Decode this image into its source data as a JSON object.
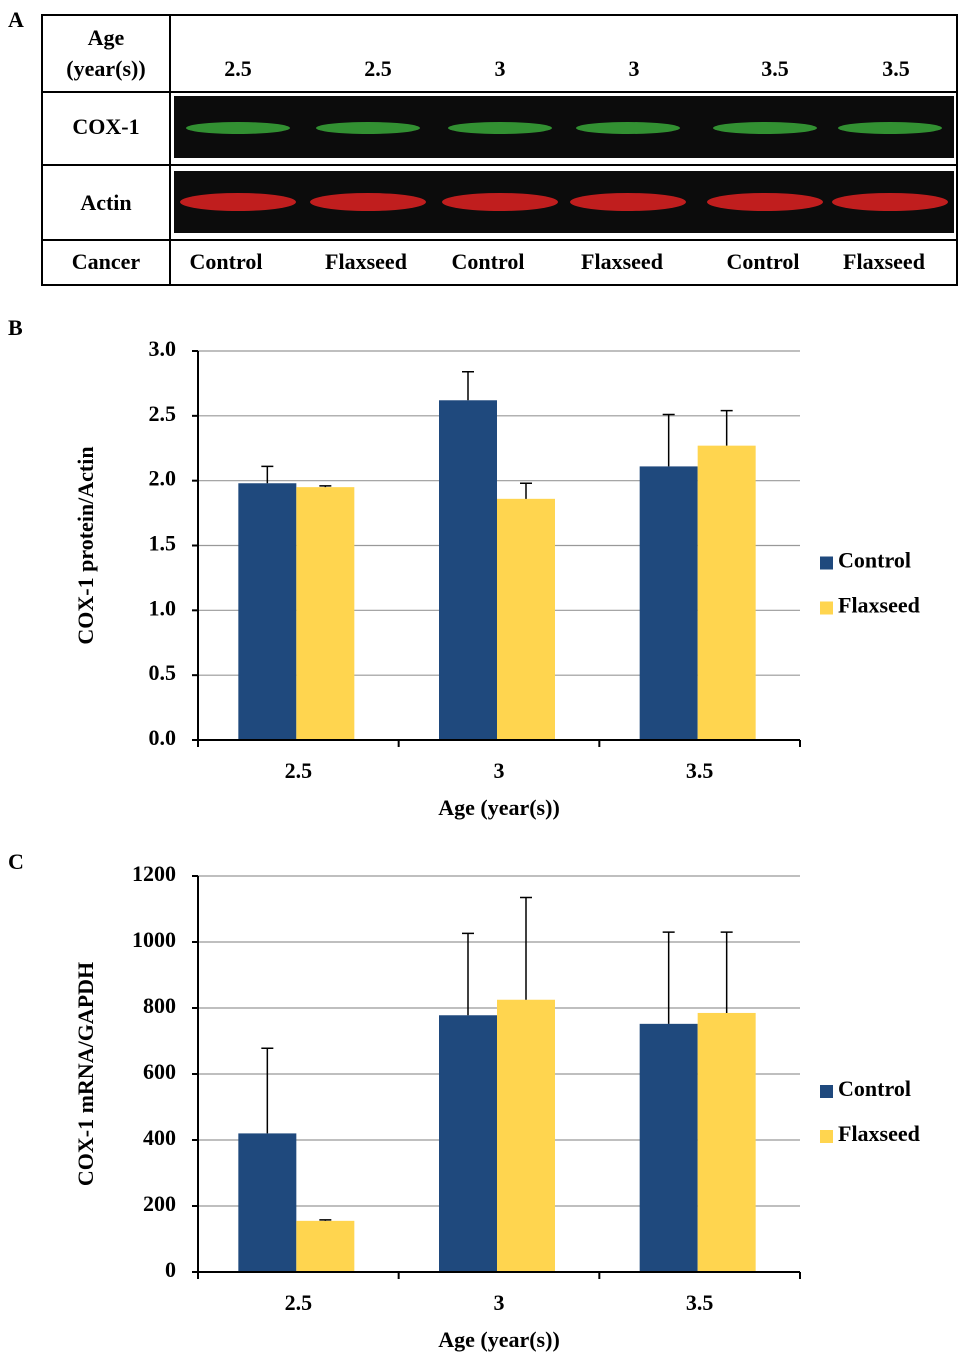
{
  "panel_labels": [
    "A",
    "B",
    "C"
  ],
  "blot": {
    "age_label": [
      "Age",
      "(year(s))"
    ],
    "ages": [
      "2.5",
      "2.5",
      "3",
      "3",
      "3.5",
      "3.5"
    ],
    "rows": [
      "COX-1",
      "Actin"
    ],
    "cancer_label": "Cancer",
    "groups": [
      "Control",
      "Flaxseed",
      "Control",
      "Flaxseed",
      "Control",
      "Flaxseed"
    ]
  },
  "chart_data": [
    {
      "type": "bar",
      "y_label": "COX-1 protein/Actin",
      "x_label": "Age (year(s))",
      "categories": [
        "2.5",
        "3",
        "3.5"
      ],
      "series": [
        {
          "name": "Control",
          "color": "#1f497d",
          "values": [
            1.98,
            2.62,
            2.11
          ],
          "errors": [
            0.13,
            0.22,
            0.4
          ]
        },
        {
          "name": "Flaxseed",
          "color": "#ffd54f",
          "values": [
            1.95,
            1.86,
            2.27
          ],
          "errors": [
            0.01,
            0.12,
            0.27
          ]
        }
      ],
      "ylim": [
        0,
        3
      ],
      "yticks": [
        {
          "value": 0,
          "label": "0.0"
        },
        0.5,
        {
          "value": 1,
          "label": "1.0"
        },
        1.5,
        {
          "value": 2,
          "label": "2.0"
        },
        2.5,
        {
          "value": 3,
          "label": "3.0"
        }
      ],
      "grid": true,
      "legend": "right"
    },
    {
      "type": "bar",
      "y_label": "COX-1 mRNA/GAPDH",
      "x_label": "Age (year(s))",
      "categories": [
        "2.5",
        "3",
        "3.5"
      ],
      "series": [
        {
          "name": "Control",
          "color": "#1f497d",
          "values": [
            420,
            778,
            752
          ],
          "errors": [
            258,
            248,
            278
          ]
        },
        {
          "name": "Flaxseed",
          "color": "#ffd54f",
          "values": [
            155,
            825,
            785
          ],
          "errors": [
            3,
            310,
            245
          ]
        }
      ],
      "ylim": [
        0,
        1200
      ],
      "yticks": [
        0,
        200,
        400,
        600,
        800,
        1000,
        1200
      ],
      "grid": true,
      "legend": "right"
    }
  ]
}
